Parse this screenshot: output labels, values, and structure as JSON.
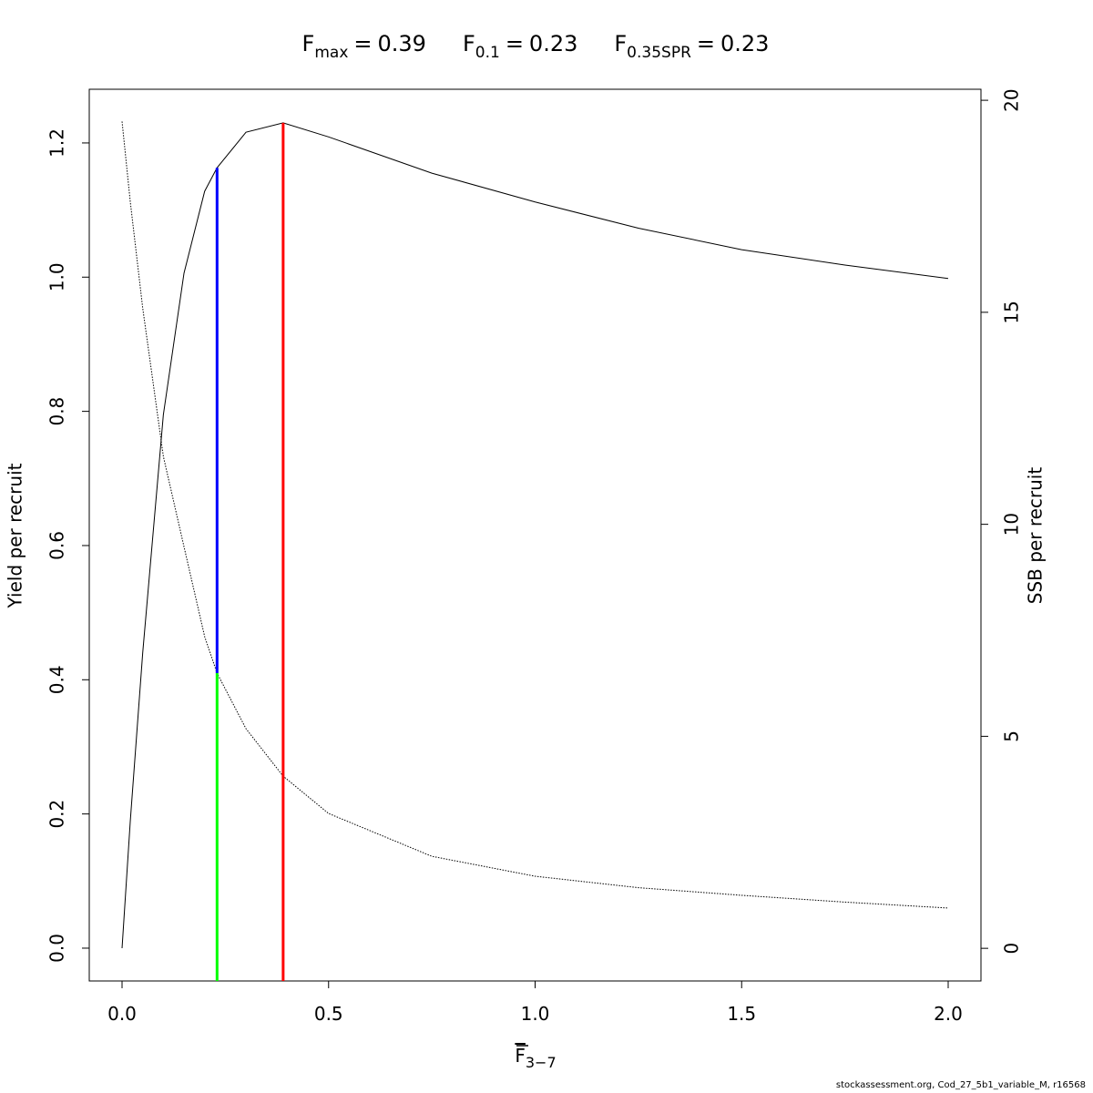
{
  "chart_data": {
    "type": "line",
    "title_parts": [
      {
        "label": "F",
        "subscript": "max",
        "relation": "=",
        "value": 0.39
      },
      {
        "label": "F",
        "subscript": "0.1",
        "relation": "=",
        "value": 0.23
      },
      {
        "label": "F",
        "subscript": "0.35SPR",
        "relation": "=",
        "value": 0.23
      }
    ],
    "xlabel": "F",
    "xlabel_subscript": "3−7",
    "ylabel": "Yield per recruit",
    "y2label": "SSB per recruit",
    "footer": "stockassessment.org, Cod_27_5b1_variable_M, r16568",
    "x": [
      0,
      0.02,
      0.05,
      0.1,
      0.15,
      0.2,
      0.23,
      0.3,
      0.39,
      0.5,
      0.75,
      1.0,
      1.25,
      1.5,
      1.75,
      2.0
    ],
    "series": [
      {
        "axis": "y",
        "style": "solid",
        "color": "#000000",
        "values": [
          0,
          0.19,
          0.44,
          0.795,
          1.006,
          1.128,
          1.163,
          1.216,
          1.23,
          1.209,
          1.155,
          1.112,
          1.073,
          1.041,
          1.018,
          0.998
        ]
      },
      {
        "axis": "y2",
        "style": "dotted",
        "color": "#000000",
        "values": [
          19.5,
          17.6,
          15.1,
          11.6,
          9.47,
          7.35,
          6.49,
          5.18,
          4.06,
          3.18,
          2.17,
          1.7,
          1.43,
          1.25,
          1.09,
          0.95
        ]
      }
    ],
    "vlines": [
      {
        "x": 0.39,
        "top": 1.23,
        "color": "#ff0000"
      },
      {
        "x": 0.23,
        "top": 1.163,
        "bottom_y2": 6.49,
        "color": "#0000ff"
      },
      {
        "x": 0.23,
        "top_y2": 6.49,
        "color": "#00ff00"
      }
    ],
    "xlim": [
      -0.0794,
      2.0794
    ],
    "ylim": [
      -0.0489,
      1.28
    ],
    "y2lim": [
      -0.77,
      20.26
    ],
    "xticks": [
      {
        "value": 0,
        "label": "0.0"
      },
      0.5,
      {
        "value": 1,
        "label": "1.0"
      },
      1.5,
      {
        "value": 2,
        "label": "2.0"
      }
    ],
    "yticks": [
      {
        "value": 0,
        "label": "0.0"
      },
      0.2,
      0.4,
      0.6,
      0.8,
      {
        "value": 1,
        "label": "1.0"
      },
      1.2
    ],
    "y2ticks": [
      0,
      5,
      10,
      15,
      20
    ]
  }
}
